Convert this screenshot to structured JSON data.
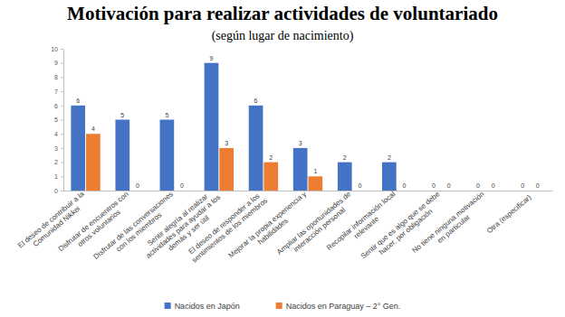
{
  "chart_data": {
    "type": "bar",
    "title": "Motivación para realizar actividades de voluntariado",
    "subtitle": "(según lugar de nacimiento)",
    "categories": [
      "El deseo de contribuir a la Comunidad Nikkei",
      "Disfrutar de encuentros con otros voluntarios",
      "Disfrutar de las conversaciones con los miembros",
      "Sentir alegría al realizar actividades para ayudar a los demás y ser útil",
      "El deseo de responder a los sentimientos de los miembros",
      "Mejorar la propia experiencia y habilidades",
      "Ampliar las oportunidades de interacción personal",
      "Recopilar información local relevante",
      "Sentir que es algo que se debe hacer, por obligación",
      "No tiene ninguna motivación en particular",
      "Otra (especificar)"
    ],
    "series": [
      {
        "name": "Nacidos en Japón",
        "color": "#4472c4",
        "values": [
          6,
          5,
          5,
          9,
          6,
          3,
          2,
          2,
          0,
          0,
          0
        ]
      },
      {
        "name": "Nacidos en Paraguay – 2° Gen.",
        "color": "#ed7d31",
        "values": [
          4,
          0,
          0,
          3,
          2,
          1,
          0,
          0,
          0,
          0,
          0
        ]
      }
    ],
    "ylim": [
      0,
      10
    ],
    "yticks": [
      0,
      1,
      2,
      3,
      4,
      5,
      6,
      7,
      8,
      9,
      10
    ],
    "grid": false,
    "legend": "bottom",
    "data_labels": true
  }
}
